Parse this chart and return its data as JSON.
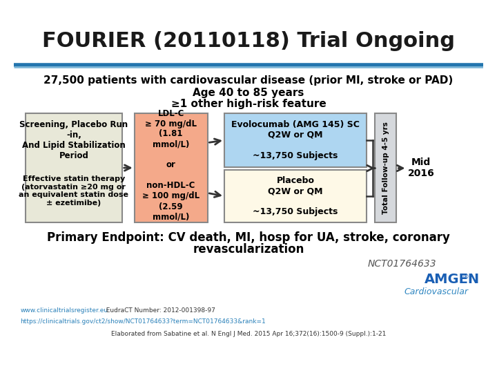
{
  "title": "FOURIER (20110118) Trial Ongoing",
  "subtitle_line1": "27,500 patients with cardiovascular disease (prior MI, stroke or PAD)",
  "subtitle_line2": "Age 40 to 85 years",
  "subtitle_line3": "≥1 other high-risk feature",
  "box3a_text": "Evolocumab (AMG 145) SC\nQ2W or QM\n\n~13,750 Subjects",
  "box3b_text": "Placebo\nQ2W or QM\n\n~13,750 Subjects",
  "box4_text": "Total Follow-up 4-5 yrs",
  "mid_label": "Mid\n2016",
  "primary_endpoint_line1": "Primary Endpoint: CV death, MI, hosp for UA, stroke, coronary",
  "primary_endpoint_line2": "revascularization",
  "nct": "NCT01764633",
  "cardiovascular": "Cardiovascular",
  "link1": "www.clinicaltrialsregister.eu",
  "link1_extra": "  EudraCT Number: 2012-001398-97",
  "link2": "https://clinicaltrials.gov/ct2/show/NCT01764633?term=NCT01764633&rank=1",
  "footnote": "Elaborated from Sabatine et al. N Engl J Med. 2015 Apr 16;372(16):1500-9 (Suppl.):1-21",
  "bg_color": "#ffffff",
  "title_color": "#1a1a1a",
  "header_bar_color": "#2275ae",
  "box1_bg": "#e8e8d8",
  "box2_bg": "#f4a98a",
  "box3a_bg": "#aed6f1",
  "box3b_bg": "#fef9e7",
  "box4_bg": "#d5d8dc",
  "box_text_color": "#000000",
  "arrow_color": "#333333",
  "primary_color": "#000000",
  "nct_color": "#555555",
  "amgen_color": "#1a5fb4",
  "cardio_color": "#2e86c1",
  "link_color": "#2980b9",
  "footnote_color": "#333333"
}
